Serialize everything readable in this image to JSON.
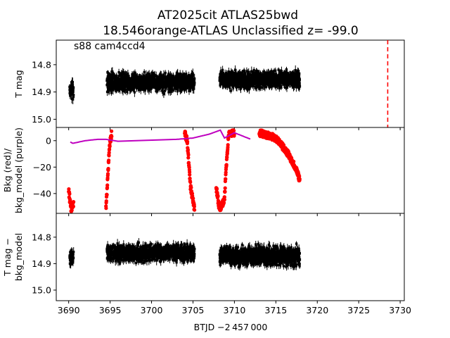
{
  "figure": {
    "title_line1": "AT2025cit  ATLAS25bwd",
    "title_line2": "18.546orange-ATLAS Unclassified z= -99.0",
    "annotation": "s88 cam4ccd4",
    "xlabel": "BTJD −2 457 000"
  },
  "chart_data": [
    {
      "type": "scatter",
      "panel": "top",
      "ylabel": "T mag",
      "y_inverted": true,
      "xlim": [
        3688.5,
        3730.5
      ],
      "ylim": [
        15.03,
        14.71
      ],
      "yticks": [
        {
          "v": 14.8,
          "label": "14.8"
        },
        {
          "v": 14.9,
          "label": "14.9"
        },
        {
          "v": 15.0,
          "label": "15.0"
        }
      ],
      "series": [
        {
          "color": "#000000",
          "errorbars": true,
          "segments": [
            {
              "x_start": 3690.1,
              "x_end": 3690.6,
              "y_center": 14.89,
              "y_spread": 0.045
            },
            {
              "x_start": 3694.6,
              "x_end": 3705.2,
              "y_center": 14.865,
              "y_spread": 0.045
            },
            {
              "x_start": 3708.2,
              "x_end": 3717.9,
              "y_center": 14.855,
              "y_spread": 0.045
            }
          ]
        }
      ],
      "vline": {
        "x": 3728.5,
        "color": "#ff0000",
        "style": "dashed"
      }
    },
    {
      "type": "scatter",
      "panel": "middle",
      "ylabel_line1": "Bkg (red)/",
      "ylabel_line2": "bkg_model (purple)",
      "xlim": [
        3688.5,
        3730.5
      ],
      "ylim": [
        -55,
        10
      ],
      "yticks": [
        {
          "v": 0,
          "label": "0"
        },
        {
          "v": -20,
          "label": "−20"
        },
        {
          "v": -40,
          "label": "−40"
        }
      ],
      "series": [
        {
          "color": "#ff0000",
          "points_outline": [
            [
              3690.0,
              -38
            ],
            [
              3690.3,
              -52
            ],
            [
              3690.6,
              -48
            ],
            [
              3694.5,
              -52
            ],
            [
              3694.7,
              -30
            ],
            [
              3694.9,
              -5
            ],
            [
              3695.2,
              6
            ],
            [
              3700.0,
              6
            ],
            [
              3704.0,
              6
            ],
            [
              3704.3,
              0
            ],
            [
              3704.7,
              -35
            ],
            [
              3705.2,
              -52
            ],
            [
              3707.8,
              -35
            ],
            [
              3708.2,
              -52
            ],
            [
              3708.8,
              -45
            ],
            [
              3709.0,
              -20
            ],
            [
              3709.3,
              5
            ],
            [
              3710.0,
              6
            ],
            [
              3713.0,
              6
            ],
            [
              3715.0,
              2
            ],
            [
              3716.5,
              -10
            ],
            [
              3717.5,
              -22
            ],
            [
              3717.9,
              -30
            ]
          ]
        },
        {
          "color": "#bf00bf",
          "points_outline": [
            [
              3690.2,
              -1
            ],
            [
              3690.5,
              -2
            ],
            [
              3692.0,
              0
            ],
            [
              3693.5,
              1
            ],
            [
              3694.5,
              1
            ],
            [
              3696.0,
              -0.5
            ],
            [
              3700.0,
              0
            ],
            [
              3703.0,
              1
            ],
            [
              3705.0,
              2
            ],
            [
              3707.0,
              5
            ],
            [
              3708.3,
              8
            ],
            [
              3708.8,
              2
            ],
            [
              3710.0,
              6
            ],
            [
              3712.0,
              1
            ],
            [
              3715.0,
              0.5
            ],
            [
              3718.0,
              0.5
            ]
          ]
        }
      ]
    },
    {
      "type": "scatter",
      "panel": "bottom",
      "ylabel_line1": "T mag −",
      "ylabel_line2": "bkg_model",
      "y_inverted": true,
      "xlim": [
        3688.5,
        3730.5
      ],
      "ylim": [
        15.04,
        14.71
      ],
      "yticks": [
        {
          "v": 14.8,
          "label": "14.8"
        },
        {
          "v": 14.9,
          "label": "14.9"
        },
        {
          "v": 15.0,
          "label": "15.0"
        }
      ],
      "xticks": [
        3690,
        3695,
        3700,
        3705,
        3710,
        3715,
        3720,
        3725,
        3730
      ],
      "series": [
        {
          "color": "#000000",
          "errorbars": true,
          "segments": [
            {
              "x_start": 3690.1,
              "x_end": 3690.6,
              "y_center": 14.88,
              "y_spread": 0.045
            },
            {
              "x_start": 3694.6,
              "x_end": 3705.2,
              "y_center": 14.86,
              "y_spread": 0.045
            },
            {
              "x_start": 3708.2,
              "x_end": 3717.9,
              "y_center": 14.87,
              "y_spread": 0.05
            }
          ]
        }
      ]
    }
  ]
}
